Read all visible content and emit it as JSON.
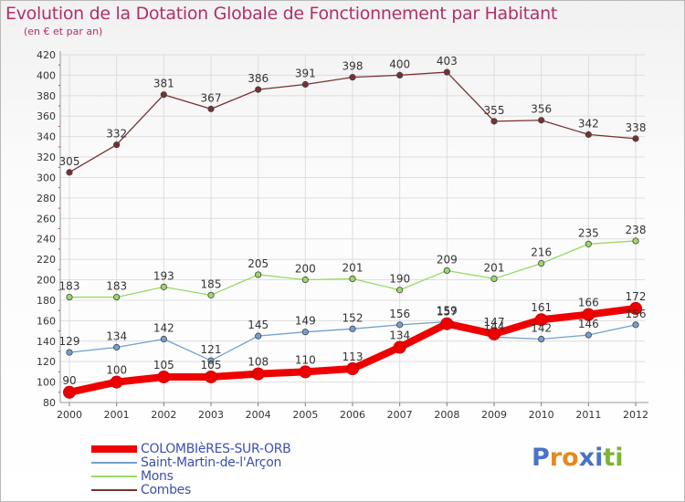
{
  "header": {
    "title": "Evolution de la Dotation Globale de Fonctionnement par Habitant",
    "subtitle": "(en € et par an)"
  },
  "logo": {
    "text": "Proxiti",
    "letters": [
      "P",
      "r",
      "o",
      "x",
      "i",
      "t",
      "i"
    ],
    "colors": [
      "#4a73c6",
      "#e58a1f",
      "#e58a1f",
      "#4a73c6",
      "#4a73c6",
      "#7db33a",
      "#7db33a"
    ]
  },
  "chart_data": {
    "type": "line",
    "x": [
      "2000",
      "2001",
      "2002",
      "2003",
      "2004",
      "2005",
      "2006",
      "2007",
      "2008",
      "2009",
      "2010",
      "2011",
      "2012"
    ],
    "ylim": [
      80,
      420
    ],
    "yticks": [
      80,
      100,
      120,
      140,
      160,
      180,
      200,
      220,
      240,
      260,
      280,
      300,
      320,
      340,
      360,
      380,
      400,
      420
    ],
    "grid": true,
    "legend_position": "bottom",
    "series": [
      {
        "name": "COLOMBIèRES-SUR-ORB",
        "color": "#ee0000",
        "values": [
          90,
          100,
          105,
          105,
          108,
          110,
          113,
          134,
          157,
          147,
          161,
          166,
          172
        ]
      },
      {
        "name": "Saint-Martin-de-l'Arçon",
        "color": "#6fa0d0",
        "values": [
          129,
          134,
          142,
          121,
          145,
          149,
          152,
          156,
          159,
          144,
          142,
          146,
          156
        ]
      },
      {
        "name": "Mons",
        "color": "#99d966",
        "values": [
          183,
          183,
          193,
          185,
          205,
          200,
          201,
          190,
          209,
          201,
          216,
          235,
          238
        ]
      },
      {
        "name": "Combes",
        "color": "#7a3030",
        "values": [
          305,
          332,
          381,
          367,
          386,
          391,
          398,
          400,
          403,
          355,
          356,
          342,
          338
        ]
      }
    ]
  }
}
